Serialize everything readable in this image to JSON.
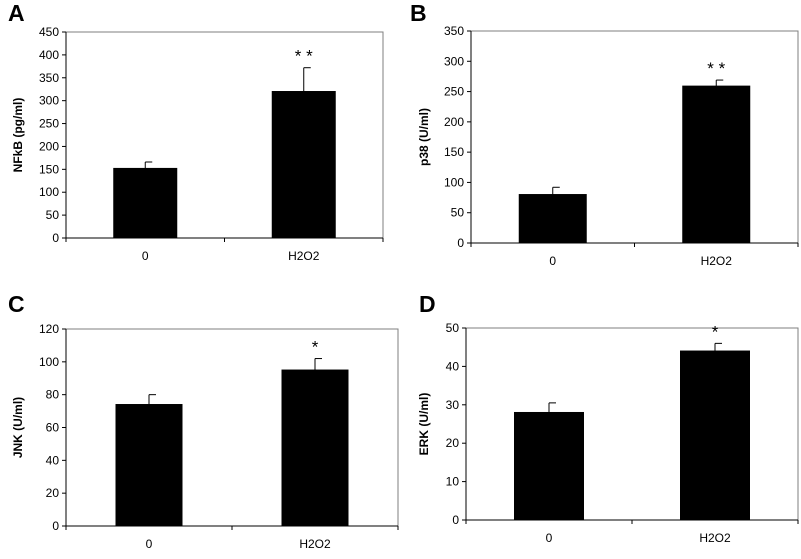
{
  "panels": [
    {
      "letter": "A"
    },
    {
      "letter": "B"
    },
    {
      "letter": "C"
    },
    {
      "letter": "D"
    }
  ],
  "chart_data": [
    {
      "type": "bar",
      "panel": "A",
      "categories": [
        "0",
        "H2O2"
      ],
      "values": [
        152,
        320
      ],
      "error": [
        14,
        52
      ],
      "significance": [
        "",
        "* *"
      ],
      "ylabel": "NFkB (pg/ml)",
      "ylim": [
        0,
        450
      ],
      "yticks": [
        0,
        50,
        100,
        150,
        200,
        250,
        300,
        350,
        400,
        450
      ],
      "grid": false,
      "bar_color": "#000000"
    },
    {
      "type": "bar",
      "panel": "B",
      "categories": [
        "0",
        "H2O2"
      ],
      "values": [
        80,
        259
      ],
      "error": [
        12,
        10
      ],
      "significance": [
        "",
        "* *"
      ],
      "ylabel": "p38 (U/ml)",
      "ylim": [
        0,
        350
      ],
      "yticks": [
        0,
        50,
        100,
        150,
        200,
        250,
        300,
        350
      ],
      "grid": false,
      "bar_color": "#000000"
    },
    {
      "type": "bar",
      "panel": "C",
      "categories": [
        "0",
        "H2O2"
      ],
      "values": [
        74,
        95
      ],
      "error": [
        6,
        7
      ],
      "significance": [
        "",
        "*"
      ],
      "ylabel": "JNK (U/ml)",
      "ylim": [
        0,
        120
      ],
      "yticks": [
        0,
        20,
        40,
        60,
        80,
        100,
        120
      ],
      "grid": false,
      "bar_color": "#000000"
    },
    {
      "type": "bar",
      "panel": "D",
      "categories": [
        "0",
        "H2O2"
      ],
      "values": [
        28,
        44
      ],
      "error": [
        2.5,
        2
      ],
      "significance": [
        "",
        "*"
      ],
      "ylabel": "ERK (U/ml)",
      "ylim": [
        0,
        50
      ],
      "yticks": [
        0,
        10,
        20,
        30,
        40,
        50
      ],
      "grid": false,
      "bar_color": "#000000"
    }
  ]
}
